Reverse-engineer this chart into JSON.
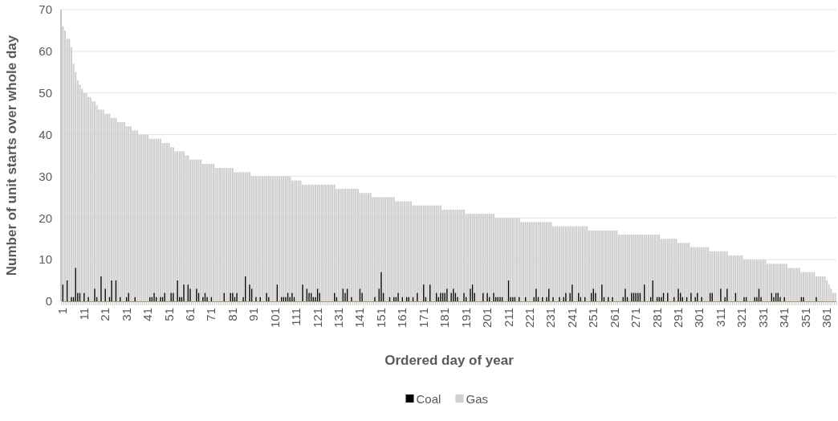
{
  "chart_data": {
    "type": "bar",
    "xlabel": "Ordered day of year",
    "ylabel": "Number of unit starts over whole day",
    "ylim": [
      0,
      70
    ],
    "yticks": [
      0,
      10,
      20,
      30,
      40,
      50,
      60,
      70
    ],
    "grid": "y",
    "legend": "bottom",
    "categories": [
      "1",
      null,
      null,
      null,
      null,
      null,
      null,
      null,
      null,
      null,
      "11",
      null,
      null,
      null,
      null,
      null,
      null,
      null,
      null,
      null,
      "21",
      null,
      null,
      null,
      null,
      null,
      null,
      null,
      null,
      null,
      "31",
      null,
      null,
      null,
      null,
      null,
      null,
      null,
      null,
      null,
      "41",
      null,
      null,
      null,
      null,
      null,
      null,
      null,
      null,
      null,
      "51",
      null,
      null,
      null,
      null,
      null,
      null,
      null,
      null,
      null,
      "61",
      null,
      null,
      null,
      null,
      null,
      null,
      null,
      null,
      null,
      "71",
      null,
      null,
      null,
      null,
      null,
      null,
      null,
      null,
      null,
      "81",
      null,
      null,
      null,
      null,
      null,
      null,
      null,
      null,
      null,
      "91",
      null,
      null,
      null,
      null,
      null,
      null,
      null,
      null,
      null,
      "101",
      null,
      null,
      null,
      null,
      null,
      null,
      null,
      null,
      null,
      "111",
      null,
      null,
      null,
      null,
      null,
      null,
      null,
      null,
      null,
      "121",
      null,
      null,
      null,
      null,
      null,
      null,
      null,
      null,
      null,
      "131",
      null,
      null,
      null,
      null,
      null,
      null,
      null,
      null,
      null,
      "141",
      null,
      null,
      null,
      null,
      null,
      null,
      null,
      null,
      null,
      "151",
      null,
      null,
      null,
      null,
      null,
      null,
      null,
      null,
      null,
      "161",
      null,
      null,
      null,
      null,
      null,
      null,
      null,
      null,
      null,
      "171",
      null,
      null,
      null,
      null,
      null,
      null,
      null,
      null,
      null,
      "181",
      null,
      null,
      null,
      null,
      null,
      null,
      null,
      null,
      null,
      "191",
      null,
      null,
      null,
      null,
      null,
      null,
      null,
      null,
      null,
      "201",
      null,
      null,
      null,
      null,
      null,
      null,
      null,
      null,
      null,
      "211",
      null,
      null,
      null,
      null,
      null,
      null,
      null,
      null,
      null,
      "221",
      null,
      null,
      null,
      null,
      null,
      null,
      null,
      null,
      null,
      "231",
      null,
      null,
      null,
      null,
      null,
      null,
      null,
      null,
      null,
      "241",
      null,
      null,
      null,
      null,
      null,
      null,
      null,
      null,
      null,
      "251",
      null,
      null,
      null,
      null,
      null,
      null,
      null,
      null,
      null,
      "261",
      null,
      null,
      null,
      null,
      null,
      null,
      null,
      null,
      null,
      "271",
      null,
      null,
      null,
      null,
      null,
      null,
      null,
      null,
      null,
      "281",
      null,
      null,
      null,
      null,
      null,
      null,
      null,
      null,
      null,
      "291",
      null,
      null,
      null,
      null,
      null,
      null,
      null,
      null,
      null,
      "301",
      null,
      null,
      null,
      null,
      null,
      null,
      null,
      null,
      null,
      "311",
      null,
      null,
      null,
      null,
      null,
      null,
      null,
      null,
      null,
      "321",
      null,
      null,
      null,
      null,
      null,
      null,
      null,
      null,
      null,
      "331",
      null,
      null,
      null,
      null,
      null,
      null,
      null,
      null,
      null,
      "341",
      null,
      null,
      null,
      null,
      null,
      null,
      null,
      null,
      null,
      "351",
      null,
      null,
      null,
      null,
      null,
      null,
      null,
      null,
      null,
      "361",
      null,
      null,
      null,
      null
    ],
    "series": [
      {
        "name": "Gas",
        "color": "#d0cece",
        "values": [
          66,
          65,
          63,
          63,
          61,
          57,
          55,
          53,
          52,
          51,
          50,
          50,
          49,
          49,
          48,
          48,
          47,
          46,
          46,
          46,
          45,
          45,
          45,
          44,
          44,
          44,
          43,
          43,
          43,
          43,
          42,
          42,
          42,
          41,
          41,
          41,
          40,
          40,
          40,
          40,
          40,
          39,
          39,
          39,
          39,
          39,
          39,
          38,
          38,
          38,
          38,
          37,
          37,
          36,
          36,
          36,
          36,
          36,
          35,
          35,
          34,
          34,
          34,
          34,
          34,
          34,
          33,
          33,
          33,
          33,
          33,
          33,
          32,
          32,
          32,
          32,
          32,
          32,
          32,
          32,
          32,
          31,
          31,
          31,
          31,
          31,
          31,
          31,
          31,
          30,
          30,
          30,
          30,
          30,
          30,
          30,
          30,
          30,
          30,
          30,
          30,
          30,
          30,
          30,
          30,
          30,
          30,
          30,
          29,
          29,
          29,
          29,
          29,
          28,
          28,
          28,
          28,
          28,
          28,
          28,
          28,
          28,
          28,
          28,
          28,
          28,
          28,
          28,
          28,
          27,
          27,
          27,
          27,
          27,
          27,
          27,
          27,
          27,
          27,
          27,
          26,
          26,
          26,
          26,
          26,
          26,
          25,
          25,
          25,
          25,
          25,
          25,
          25,
          25,
          25,
          25,
          25,
          24,
          24,
          24,
          24,
          24,
          24,
          24,
          24,
          23,
          23,
          23,
          23,
          23,
          23,
          23,
          23,
          23,
          23,
          23,
          23,
          23,
          23,
          22,
          22,
          22,
          22,
          22,
          22,
          22,
          22,
          22,
          22,
          22,
          21,
          21,
          21,
          21,
          21,
          21,
          21,
          21,
          21,
          21,
          21,
          21,
          21,
          21,
          20,
          20,
          20,
          20,
          20,
          20,
          20,
          20,
          20,
          20,
          20,
          20,
          19,
          19,
          19,
          19,
          19,
          19,
          19,
          19,
          19,
          19,
          19,
          19,
          19,
          19,
          19,
          18,
          18,
          18,
          18,
          18,
          18,
          18,
          18,
          18,
          18,
          18,
          18,
          18,
          18,
          18,
          18,
          18,
          17,
          17,
          17,
          17,
          17,
          17,
          17,
          17,
          17,
          17,
          17,
          17,
          17,
          17,
          16,
          16,
          16,
          16,
          16,
          16,
          16,
          16,
          16,
          16,
          16,
          16,
          16,
          16,
          16,
          16,
          16,
          16,
          16,
          16,
          15,
          15,
          15,
          15,
          15,
          15,
          15,
          15,
          14,
          14,
          14,
          14,
          14,
          14,
          13,
          13,
          13,
          13,
          13,
          13,
          13,
          13,
          13,
          12,
          12,
          12,
          12,
          12,
          12,
          12,
          12,
          12,
          11,
          11,
          11,
          11,
          11,
          11,
          11,
          10,
          10,
          10,
          10,
          10,
          10,
          10,
          10,
          10,
          10,
          10,
          9,
          9,
          9,
          9,
          9,
          9,
          9,
          9,
          9,
          9,
          8,
          8,
          8,
          8,
          8,
          8,
          7,
          7,
          7,
          7,
          7,
          7,
          7,
          6,
          6,
          6,
          6,
          6,
          5,
          4,
          3,
          2,
          2
        ]
      },
      {
        "name": "Coal",
        "color": "#000000",
        "values": [
          4,
          0,
          5,
          0,
          1,
          1,
          8,
          2,
          2,
          0,
          2,
          0,
          1,
          0,
          0,
          3,
          1,
          0,
          6,
          0,
          3,
          0,
          1,
          5,
          0,
          5,
          0,
          1,
          0,
          0,
          1,
          2,
          0,
          0,
          1,
          0,
          0,
          0,
          0,
          0,
          0,
          1,
          1,
          2,
          1,
          0,
          1,
          1,
          2,
          0,
          0,
          2,
          2,
          0,
          5,
          1,
          1,
          4,
          0,
          4,
          3,
          0,
          0,
          3,
          2,
          0,
          1,
          2,
          1,
          0,
          1,
          0,
          0,
          0,
          0,
          0,
          2,
          0,
          0,
          2,
          2,
          1,
          2,
          0,
          0,
          1,
          6,
          0,
          4,
          3,
          0,
          1,
          0,
          1,
          0,
          0,
          2,
          1,
          0,
          0,
          0,
          4,
          0,
          1,
          1,
          1,
          2,
          1,
          2,
          1,
          0,
          0,
          0,
          4,
          0,
          3,
          2,
          2,
          1,
          1,
          3,
          2,
          0,
          0,
          0,
          0,
          0,
          0,
          2,
          1,
          0,
          0,
          3,
          2,
          3,
          0,
          1,
          0,
          0,
          0,
          3,
          2,
          0,
          0,
          0,
          0,
          0,
          1,
          0,
          3,
          7,
          2,
          0,
          0,
          1,
          0,
          1,
          1,
          2,
          0,
          1,
          0,
          1,
          1,
          0,
          1,
          0,
          2,
          0,
          0,
          4,
          1,
          0,
          4,
          0,
          0,
          2,
          1,
          2,
          2,
          2,
          3,
          0,
          2,
          3,
          2,
          1,
          0,
          0,
          2,
          1,
          0,
          3,
          4,
          2,
          0,
          0,
          0,
          2,
          0,
          2,
          1,
          0,
          2,
          1,
          1,
          1,
          1,
          0,
          0,
          5,
          1,
          1,
          1,
          0,
          1,
          0,
          0,
          1,
          0,
          0,
          0,
          1,
          3,
          1,
          0,
          1,
          0,
          1,
          3,
          0,
          1,
          0,
          0,
          1,
          0,
          1,
          2,
          0,
          2,
          4,
          0,
          0,
          2,
          1,
          0,
          1,
          0,
          0,
          2,
          3,
          2,
          0,
          0,
          4,
          1,
          0,
          1,
          0,
          1,
          0,
          0,
          0,
          0,
          1,
          3,
          1,
          0,
          2,
          2,
          2,
          2,
          2,
          0,
          4,
          0,
          0,
          1,
          5,
          0,
          1,
          1,
          1,
          2,
          0,
          2,
          0,
          0,
          1,
          0,
          3,
          2,
          1,
          0,
          1,
          0,
          2,
          0,
          1,
          2,
          0,
          1,
          0,
          0,
          0,
          2,
          2,
          0,
          0,
          0,
          3,
          0,
          1,
          3,
          0,
          0,
          0,
          2,
          0,
          0,
          0,
          1,
          1,
          0,
          0,
          0,
          1,
          1,
          3,
          1,
          0,
          0,
          0,
          0,
          2,
          1,
          2,
          2,
          1,
          0,
          1,
          0,
          0,
          0,
          0,
          0,
          0,
          0,
          1,
          1,
          0,
          0,
          0,
          0,
          0,
          1,
          0,
          0,
          0,
          0,
          0,
          0,
          0,
          0,
          0
        ]
      }
    ]
  }
}
